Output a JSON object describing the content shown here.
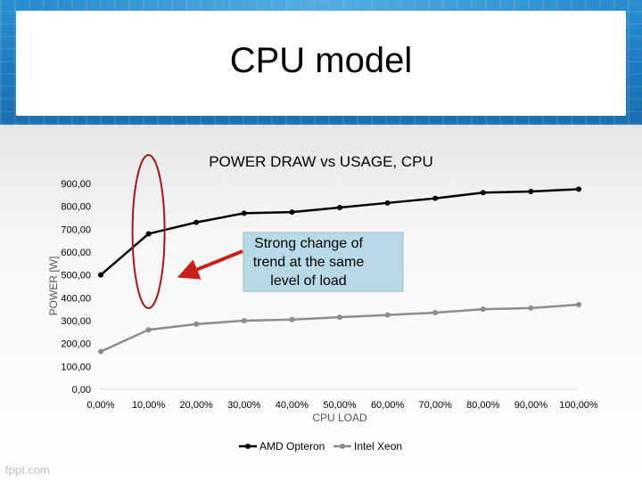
{
  "slide": {
    "title": "CPU model",
    "watermark": "fppt.com"
  },
  "chart_data": {
    "type": "line",
    "title": "POWER DRAW vs USAGE, CPU",
    "xlabel": "CPU LOAD",
    "ylabel": "POWER [W]",
    "categories": [
      "0,00%",
      "10,00%",
      "20,00%",
      "30,00%",
      "40,00%",
      "50,00%",
      "60,00%",
      "70,00%",
      "80,00%",
      "90,00%",
      "100,00%"
    ],
    "y_ticks": [
      "0,00",
      "100,00",
      "200,00",
      "300,00",
      "400,00",
      "500,00",
      "600,00",
      "700,00",
      "800,00",
      "900,00"
    ],
    "ylim": [
      0,
      900
    ],
    "grid": false,
    "legend": "bottom",
    "series": [
      {
        "name": "AMD Opteron",
        "color": "#000000",
        "values": [
          500,
          680,
          730,
          770,
          775,
          795,
          815,
          835,
          860,
          865,
          875
        ]
      },
      {
        "name": "Intel Xeon",
        "color": "#8c8c8c",
        "values": [
          165,
          260,
          285,
          300,
          305,
          315,
          325,
          335,
          350,
          355,
          370
        ]
      }
    ],
    "annotation": {
      "text_lines": [
        "Strong change of",
        "trend at the same",
        "level of load"
      ],
      "box_color": "#b7d9e5",
      "arrow_color": "#c8201a",
      "ellipse_color": "#a01818"
    }
  }
}
